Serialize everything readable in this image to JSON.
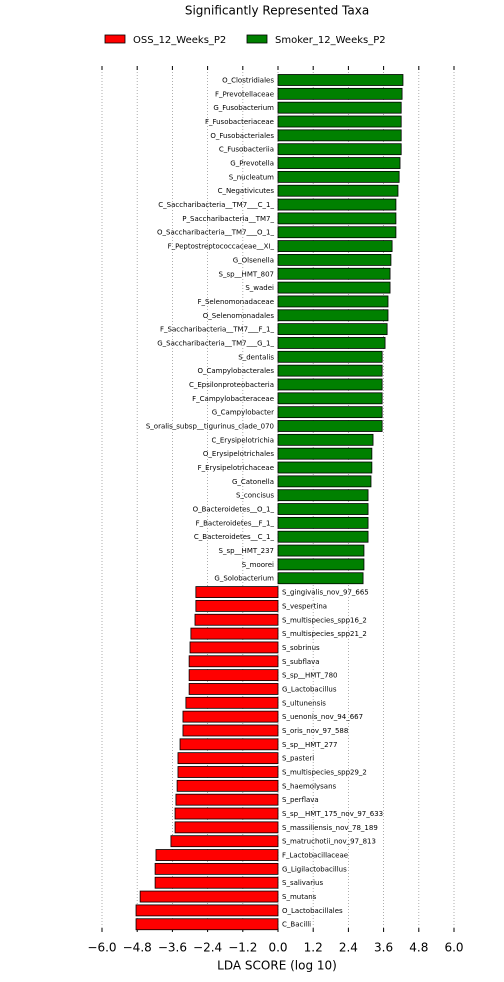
{
  "chart_data": {
    "type": "bar",
    "orientation": "horizontal",
    "title": "Significantly Represented Taxa",
    "xlabel": "LDA SCORE (log 10)",
    "categories": [
      "O_Clostridiales",
      "F_Prevotellaceae",
      "G_Fusobacterium",
      "F_Fusobacteriaceae",
      "O_Fusobacteriales",
      "C_Fusobacteriia",
      "G_Prevotella",
      "S_nucleatum",
      "C_Negativicutes",
      "C_Saccharibacteria__TM7___C_1_",
      "P_Saccharibacteria__TM7_",
      "O_Saccharibacteria__TM7___O_1_",
      "F_Peptostreptococcaceae__XI_",
      "G_Olsenella",
      "S_sp__HMT_807",
      "S_wadei",
      "F_Selenomonadaceae",
      "O_Selenomonadales",
      "F_Saccharibacteria__TM7___F_1_",
      "G_Saccharibacteria__TM7___G_1_",
      "S_dentalis",
      "O_Campylobacterales",
      "C_Epsilonproteobacteria",
      "F_Campylobacteraceae",
      "G_Campylobacter",
      "S_oralis_subsp__tigurinus_clade_070",
      "C_Erysipelotrichia",
      "O_Erysipelotrichales",
      "F_Erysipelotrichaceae",
      "G_Catonella",
      "S_concisus",
      "O_Bacteroidetes__O_1_",
      "F_Bacteroidetes__F_1_",
      "C_Bacteroidetes__C_1_",
      "S_sp__HMT_237",
      "S_moorei",
      "G_Solobacterium",
      "S_gingivalis_nov_97_665",
      "S_vespertina",
      "S_multispecies_spp16_2",
      "S_multispecies_spp21_2",
      "S_sobrinus",
      "S_subflava",
      "S_sp__HMT_780",
      "G_Lactobacillus",
      "S_ultunensis",
      "S_uenonis_nov_94_667",
      "S_oris_nov_97_588",
      "S_sp__HMT_277",
      "S_pasteri",
      "S_multispecies_spp29_2",
      "S_haemolysans",
      "S_perflava",
      "S_sp__HMT_175_nov_97_633",
      "S_massiliensis_nov_78_189",
      "S_matruchotii_nov_97_813",
      "F_Lactobacillaceae",
      "G_Ligilactobacillus",
      "S_salivarius",
      "S_mutans",
      "O_Lactobacillales",
      "C_Bacilli"
    ],
    "series": [
      {
        "name": "OSS_12_Weeks_P2",
        "color": "#ff0000",
        "values": [
          null,
          null,
          null,
          null,
          null,
          null,
          null,
          null,
          null,
          null,
          null,
          null,
          null,
          null,
          null,
          null,
          null,
          null,
          null,
          null,
          null,
          null,
          null,
          null,
          null,
          null,
          null,
          null,
          null,
          null,
          null,
          null,
          null,
          null,
          null,
          null,
          null,
          -2.8,
          -2.8,
          -2.83,
          -2.97,
          -3.0,
          -3.03,
          -3.03,
          -3.03,
          -3.14,
          -3.24,
          -3.24,
          -3.34,
          -3.41,
          -3.41,
          -3.44,
          -3.48,
          -3.51,
          -3.51,
          -3.65,
          -4.16,
          -4.19,
          -4.19,
          -4.7,
          -4.84,
          -4.84
        ]
      },
      {
        "name": "Smoker_12_Weeks_P2",
        "color": "#008000",
        "values": [
          4.26,
          4.23,
          4.2,
          4.2,
          4.2,
          4.2,
          4.16,
          4.13,
          4.09,
          4.02,
          4.02,
          4.02,
          3.89,
          3.85,
          3.82,
          3.82,
          3.75,
          3.75,
          3.72,
          3.65,
          3.55,
          3.55,
          3.55,
          3.55,
          3.55,
          3.55,
          3.24,
          3.2,
          3.2,
          3.17,
          3.07,
          3.07,
          3.07,
          3.07,
          2.93,
          2.93,
          2.9,
          null,
          null,
          null,
          null,
          null,
          null,
          null,
          null,
          null,
          null,
          null,
          null,
          null,
          null,
          null,
          null,
          null,
          null,
          null,
          null,
          null,
          null,
          null,
          null,
          null
        ]
      }
    ],
    "xlim": [
      -6.0,
      6.0
    ],
    "xticks": [
      {
        "value": -6.0,
        "label": "−6.0"
      },
      {
        "value": -4.8,
        "label": "−4.8"
      },
      {
        "value": -3.6,
        "label": "−3.6"
      },
      {
        "value": -2.4,
        "label": "−2.4"
      },
      {
        "value": -1.2,
        "label": "−1.2"
      },
      {
        "value": 0,
        "label": "0.0"
      },
      1.2,
      2.4,
      3.6,
      4.8,
      {
        "value": 6.0,
        "label": "6.0"
      }
    ],
    "grid": true
  }
}
